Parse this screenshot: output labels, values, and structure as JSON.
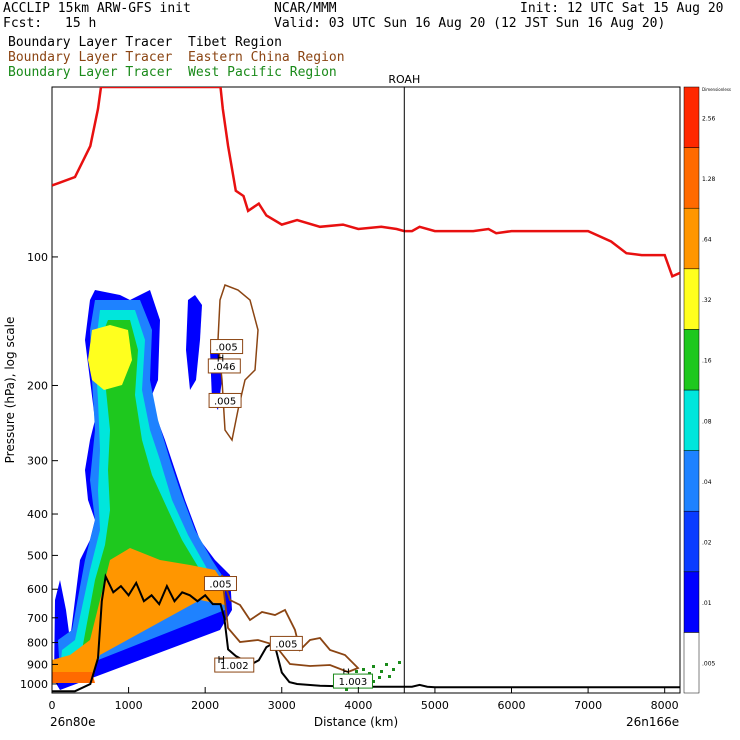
{
  "header": {
    "model": "ACCLIP 15km ARW-GFS init",
    "org": "NCAR/MMM",
    "init": "Init: 12 UTC Sat 15 Aug 20",
    "fcst_label": "Fcst:",
    "fcst_value": "15 h",
    "valid": "Valid: 03 UTC Sun 16 Aug 20 (12 JST Sun 16 Aug 20)",
    "tracer_tibet": "Boundary Layer Tracer  Tibet Region",
    "tracer_china": "Boundary Layer Tracer  Eastern China Region",
    "tracer_pacific": "Boundary Layer Tracer  West Pacific Region"
  },
  "colors": {
    "tibet_text": "#000000",
    "china": "#8b4513",
    "pacific": "#1a8a1a",
    "tropopause": "#e81010",
    "terrain": "#000000"
  },
  "chart_data": {
    "type": "heatmap",
    "xlabel": "Distance (km)",
    "ylabel": "Pressure (hPa), log scale",
    "xlim": [
      0,
      8200
    ],
    "ylim_hpa": [
      1050,
      40
    ],
    "x_ticks": [
      0,
      1000,
      2000,
      3000,
      4000,
      5000,
      6000,
      7000,
      8000
    ],
    "y_ticks": [
      100,
      200,
      300,
      400,
      500,
      600,
      700,
      800,
      900,
      1000
    ],
    "left_endpoint": "26n80e",
    "right_endpoint": "26n166e",
    "marker": {
      "label": "ROAH",
      "x": 4600
    },
    "colorbar": {
      "top_label": "Dimensionless",
      "levels": [
        ".005",
        ".01",
        ".02",
        ".04",
        ".08",
        ".16",
        ".32",
        ".64",
        "1.28",
        "2.56"
      ],
      "colors": [
        "#ffffff",
        "#0000ff",
        "#0a3cff",
        "#1e82ff",
        "#00e6dc",
        "#1ec81e",
        "#ffff1e",
        "#ff9600",
        "#ff6a00",
        "#ff2800"
      ]
    },
    "series": [
      {
        "name": "tropopause",
        "x": [
          0,
          100,
          300,
          500,
          600,
          640,
          660,
          2200,
          2230,
          2300,
          2400,
          2500,
          2560,
          2700,
          2800,
          3000,
          3200,
          3500,
          3800,
          4000,
          4300,
          4500,
          4600,
          4700,
          4800,
          5000,
          5500,
          5700,
          5800,
          6000,
          6500,
          7000,
          7300,
          7500,
          7700,
          8000,
          8100,
          8200
        ],
        "y": [
          68,
          67,
          65,
          55,
          45,
          40,
          40,
          40,
          45,
          55,
          70,
          72,
          78,
          75,
          80,
          84,
          82,
          85,
          84,
          86,
          85,
          86,
          87,
          87,
          85,
          87,
          87,
          86,
          88,
          87,
          87,
          87,
          92,
          98,
          99,
          99,
          111,
          109
        ]
      },
      {
        "name": "terrain",
        "x": [
          0,
          100,
          300,
          500,
          600,
          650,
          700,
          800,
          900,
          1000,
          1100,
          1200,
          1300,
          1400,
          1500,
          1600,
          1700,
          1800,
          1900,
          2000,
          2100,
          2200,
          2250,
          2300,
          2400,
          2500,
          2600,
          2700,
          2800,
          2900,
          3000,
          3100,
          3200,
          3500,
          4000,
          4500,
          4600,
          4700,
          4800,
          4900,
          5000,
          6000,
          7000,
          8000,
          8200
        ],
        "y": [
          1040,
          1040,
          1040,
          1000,
          870,
          640,
          560,
          610,
          590,
          620,
          580,
          640,
          620,
          650,
          590,
          640,
          610,
          620,
          640,
          620,
          650,
          650,
          700,
          830,
          860,
          880,
          900,
          880,
          820,
          800,
          940,
          990,
          1000,
          1010,
          1015,
          1015,
          1015,
          1015,
          1005,
          1015,
          1018,
          1018,
          1018,
          1018,
          1018
        ]
      }
    ],
    "contour_labels": [
      {
        "text": ".005",
        "x": 2280,
        "p": 163,
        "series": "china"
      },
      {
        "text": ".046",
        "x": 2250,
        "p": 181,
        "series": "china"
      },
      {
        "text": ".005",
        "x": 2260,
        "p": 218,
        "series": "china"
      },
      {
        "text": "H",
        "x": 2200,
        "p": 173,
        "series": "china"
      },
      {
        "text": ".005",
        "x": 2200,
        "p": 585,
        "series": "china"
      },
      {
        "text": ".005",
        "x": 3060,
        "p": 808,
        "series": "china"
      },
      {
        "text": "1.002",
        "x": 2380,
        "p": 908,
        "series": "china"
      },
      {
        "text": "H",
        "x": 2210,
        "p": 880,
        "series": "china"
      },
      {
        "text": "H",
        "x": 3840,
        "p": 940,
        "series": "pacific"
      },
      {
        "text": "1.003",
        "x": 3930,
        "p": 990,
        "series": "pacific"
      }
    ]
  }
}
